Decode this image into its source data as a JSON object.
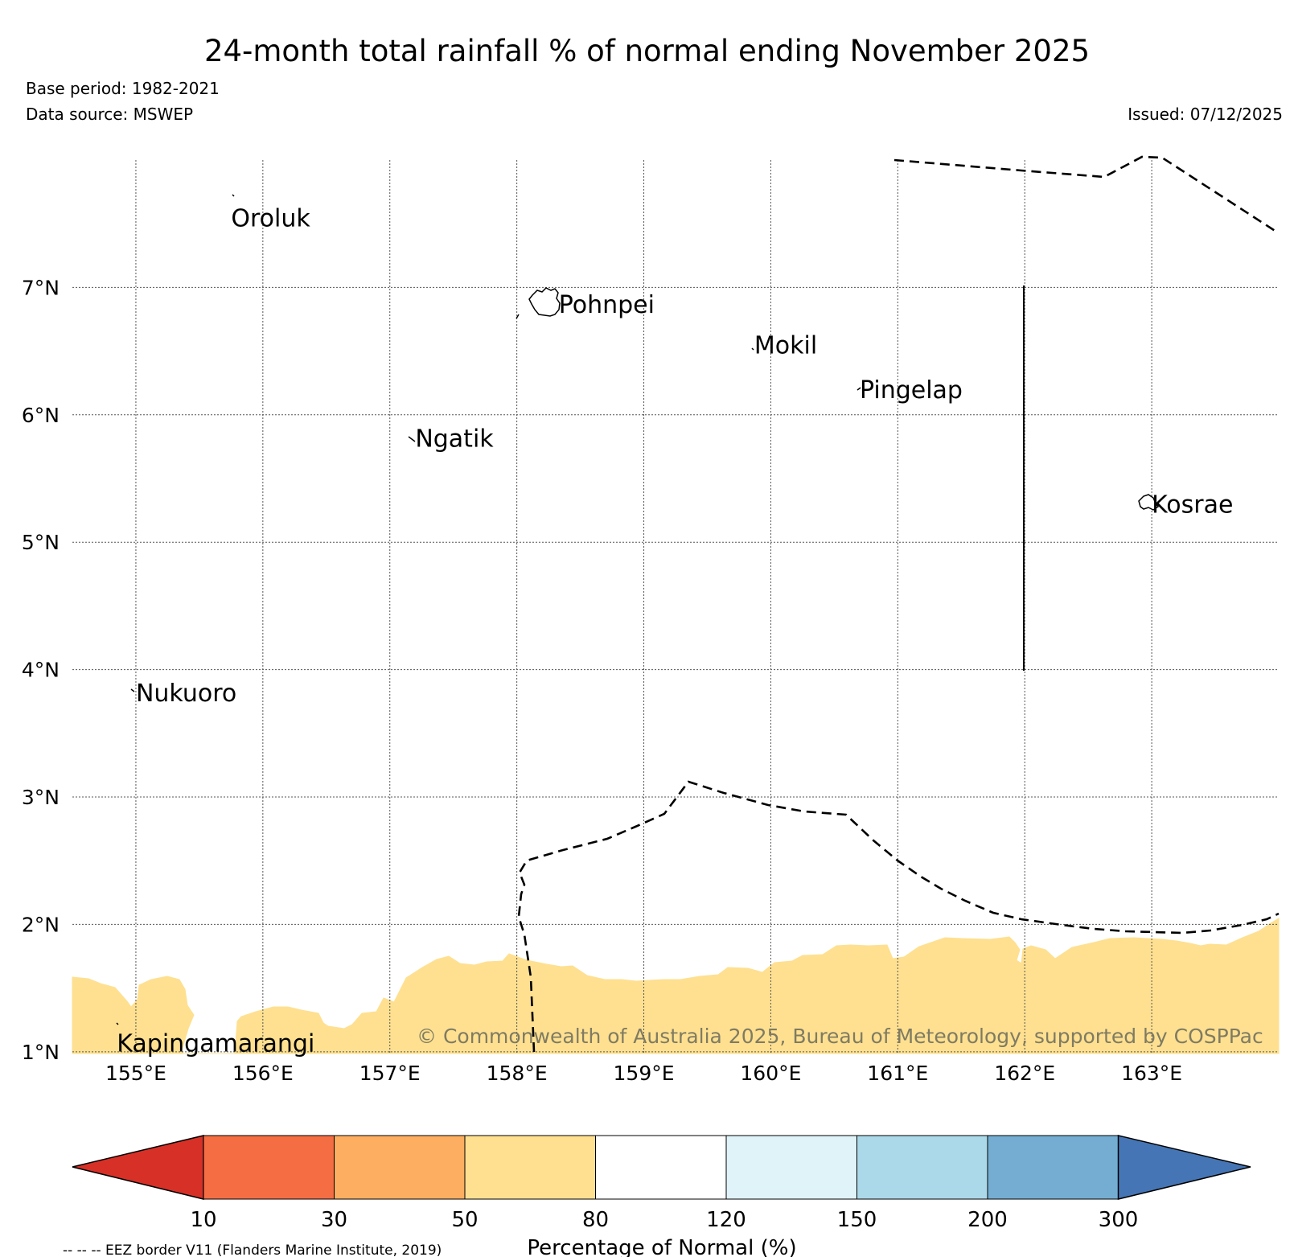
{
  "header": {
    "title": "24-month total rainfall % of normal ending November 2025",
    "base_period": "Base period: 1982-2021",
    "data_source": "Data source: MSWEP",
    "issued": "Issued: 07/12/2025"
  },
  "map": {
    "lon_labels": [
      "155°E",
      "156°E",
      "157°E",
      "158°E",
      "159°E",
      "160°E",
      "161°E",
      "162°E",
      "163°E"
    ],
    "lat_labels": [
      "1°N",
      "2°N",
      "3°N",
      "4°N",
      "5°N",
      "6°N",
      "7°N"
    ],
    "places": [
      {
        "name": "Oroluk",
        "lon": 155.75,
        "lat": 7.55
      },
      {
        "name": "Pohnpei",
        "lon": 158.33,
        "lat": 6.87
      },
      {
        "name": "Mokil",
        "lon": 159.87,
        "lat": 6.55
      },
      {
        "name": "Pingelap",
        "lon": 160.7,
        "lat": 6.2
      },
      {
        "name": "Ngatik",
        "lon": 157.2,
        "lat": 5.82
      },
      {
        "name": "Kosrae",
        "lon": 163.0,
        "lat": 5.3
      },
      {
        "name": "Nukuoro",
        "lon": 155.0,
        "lat": 3.82
      },
      {
        "name": "Kapingamarangi",
        "lon": 154.85,
        "lat": 1.07
      }
    ],
    "copyright": "© Commonwealth of Australia 2025, Bureau of Meteorology, supported by COSPPac",
    "shaded_category": "50-80"
  },
  "colorbar": {
    "title": "Percentage of Normal (%)",
    "ticks": [
      "10",
      "30",
      "50",
      "80",
      "120",
      "150",
      "200",
      "300"
    ],
    "colors": {
      "below_10": "#d73027",
      "10-30": "#f46d43",
      "30-50": "#fdae61",
      "50-80": "#fee090",
      "80-120": "#ffffff",
      "120-150": "#e0f3f8",
      "150-200": "#abd9e9",
      "200-300": "#74add1",
      "above_300": "#4575b4"
    },
    "eez_note": "-- -- -- EEZ border V11 (Flanders Marine Institute, 2019)"
  }
}
